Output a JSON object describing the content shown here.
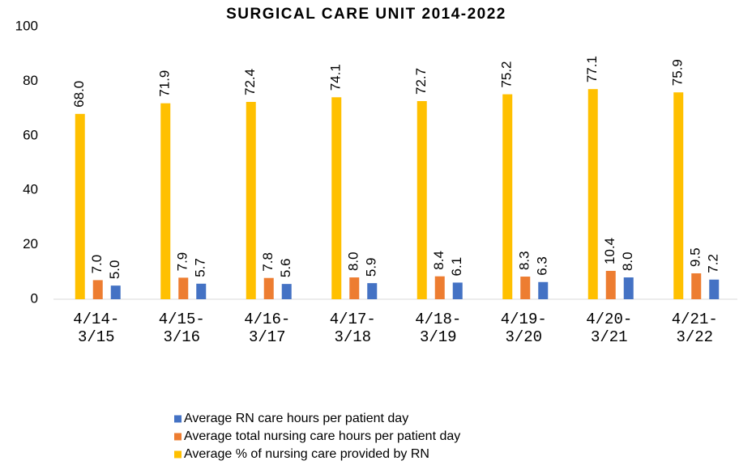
{
  "chart_data": {
    "type": "bar",
    "title": "SURGICAL CARE UNIT 2014-2022",
    "categories": [
      "4/14-3/15",
      "4/15-3/16",
      "4/16-3/17",
      "4/17-3/18",
      "4/18-3/19",
      "4/19-3/20",
      "4/20-3/21",
      "4/21-3/22"
    ],
    "series": [
      {
        "name": "Average RN care hours per patient day",
        "color": "#4472c4",
        "values": [
          5,
          5.7,
          5.6,
          5.9,
          6.1,
          6.3,
          8,
          7.2
        ],
        "value_labels": [
          "5.0",
          "5.7",
          "5.6",
          "5.9",
          "6.1",
          "6.3",
          "8.0",
          "7.2"
        ]
      },
      {
        "name": "Average total nursing care hours per patient day",
        "color": "#ed7d31",
        "values": [
          7,
          7.9,
          7.8,
          8,
          8.4,
          8.3,
          10.4,
          9.5
        ],
        "value_labels": [
          "7.0",
          "7.9",
          "7.8",
          "8.0",
          "8.4",
          "8.3",
          "10.4",
          "9.5"
        ]
      },
      {
        "name": "Average % of nursing care provided by RN",
        "color": "#ffc000",
        "values": [
          68,
          71.9,
          72.4,
          74.1,
          72.7,
          75.2,
          77.1,
          75.9
        ],
        "value_labels": [
          "68.0",
          "71.9",
          "72.4",
          "74.1",
          "72.7",
          "75.2",
          "77.1",
          "75.9"
        ]
      }
    ],
    "ylim": [
      0,
      100
    ],
    "yticks": [
      0,
      20,
      40,
      60,
      80,
      100
    ],
    "grid": false
  }
}
